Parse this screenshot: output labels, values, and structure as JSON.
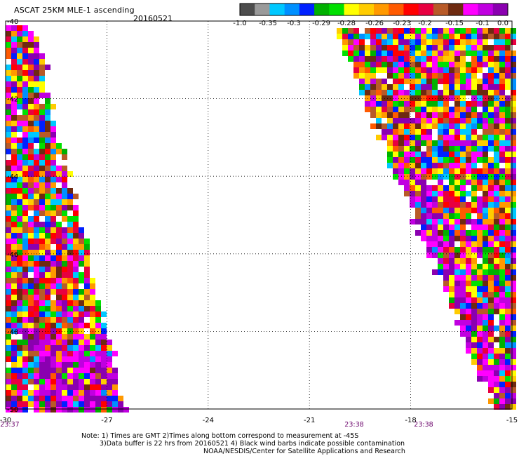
{
  "header": {
    "title": "ASCAT 25KM MLE-1 ascending",
    "date": "20160521"
  },
  "colorbar": {
    "colors": [
      "#4d4d4d",
      "#9a9a9a",
      "#00c8ff",
      "#0090ff",
      "#0020ff",
      "#00b000",
      "#00e000",
      "#ffff00",
      "#ffcc00",
      "#ff9900",
      "#ff5a00",
      "#ff0000",
      "#e80040",
      "#b85a28",
      "#6e2a10",
      "#ff00ff",
      "#c000e0",
      "#8a00b0"
    ],
    "tick_labels": [
      "-1.0",
      "-0.35",
      "-0.3",
      "-0.29",
      "-0.28",
      "-0.26",
      "-0.23",
      "-0.2",
      "-0.15",
      "-0.1",
      "0.0"
    ]
  },
  "axes": {
    "x_labels": [
      "-30",
      "-27",
      "-24",
      "-21",
      "-18",
      "-15"
    ],
    "y_labels": [
      "-40",
      "-42",
      "-44",
      "-46",
      "-48",
      "-50"
    ],
    "x_range": [
      -30,
      -15
    ],
    "y_range": [
      -40,
      -50
    ],
    "grid": true
  },
  "times": [
    "23:37",
    "23:38",
    "23:38"
  ],
  "notes": {
    "line1": "Note: 1) Times are GMT 2)Times along bottom correspond to measurement at -45S",
    "line2": "3)Data buffer is 22 hrs from 20160521 4) Black wind barbs indicate possible contamination",
    "line3": "NOAA/NESDIS/Center for Satellite Applications and Research"
  }
}
